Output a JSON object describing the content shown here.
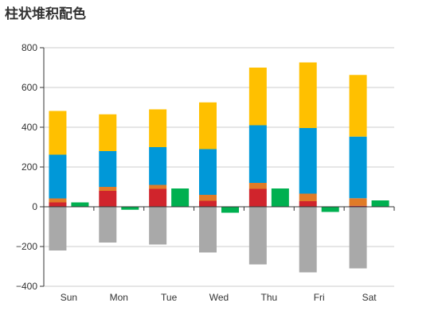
{
  "title": "柱状堆积配色",
  "chart_data": {
    "type": "bar",
    "title": "柱状堆积配色",
    "xlabel": "",
    "ylabel": "",
    "categories": [
      "Sun",
      "Mon",
      "Tue",
      "Wed",
      "Thu",
      "Fri",
      "Sat"
    ],
    "ylim": [
      -400,
      800
    ],
    "yticks": [
      -400,
      -200,
      0,
      200,
      400,
      600,
      800
    ],
    "ytick_labels": [
      "−400",
      "−200",
      "0",
      "200",
      "400",
      "600",
      "800"
    ],
    "grid": true,
    "legend": "none",
    "stacks": [
      {
        "stack": "main",
        "series": [
          {
            "color": "#d0242c",
            "values": [
              22,
              80,
              90,
              30,
              90,
              28,
              5
            ]
          },
          {
            "color": "#e07b27",
            "values": [
              20,
              20,
              20,
              30,
              30,
              38,
              38
            ]
          },
          {
            "color": "#0098d8",
            "values": [
              220,
              180,
              190,
              230,
              290,
              330,
              310
            ]
          },
          {
            "color": "#ffc000",
            "values": [
              220,
              185,
              190,
              235,
              290,
              330,
              310
            ]
          },
          {
            "color": "#a9a9a9",
            "values": [
              -220,
              -180,
              -190,
              -230,
              -290,
              -330,
              -310
            ]
          }
        ]
      },
      {
        "stack": "side",
        "series": [
          {
            "color": "#00b050",
            "values": [
              22,
              -15,
              92,
              -30,
              92,
              -26,
              32
            ]
          }
        ]
      }
    ]
  }
}
